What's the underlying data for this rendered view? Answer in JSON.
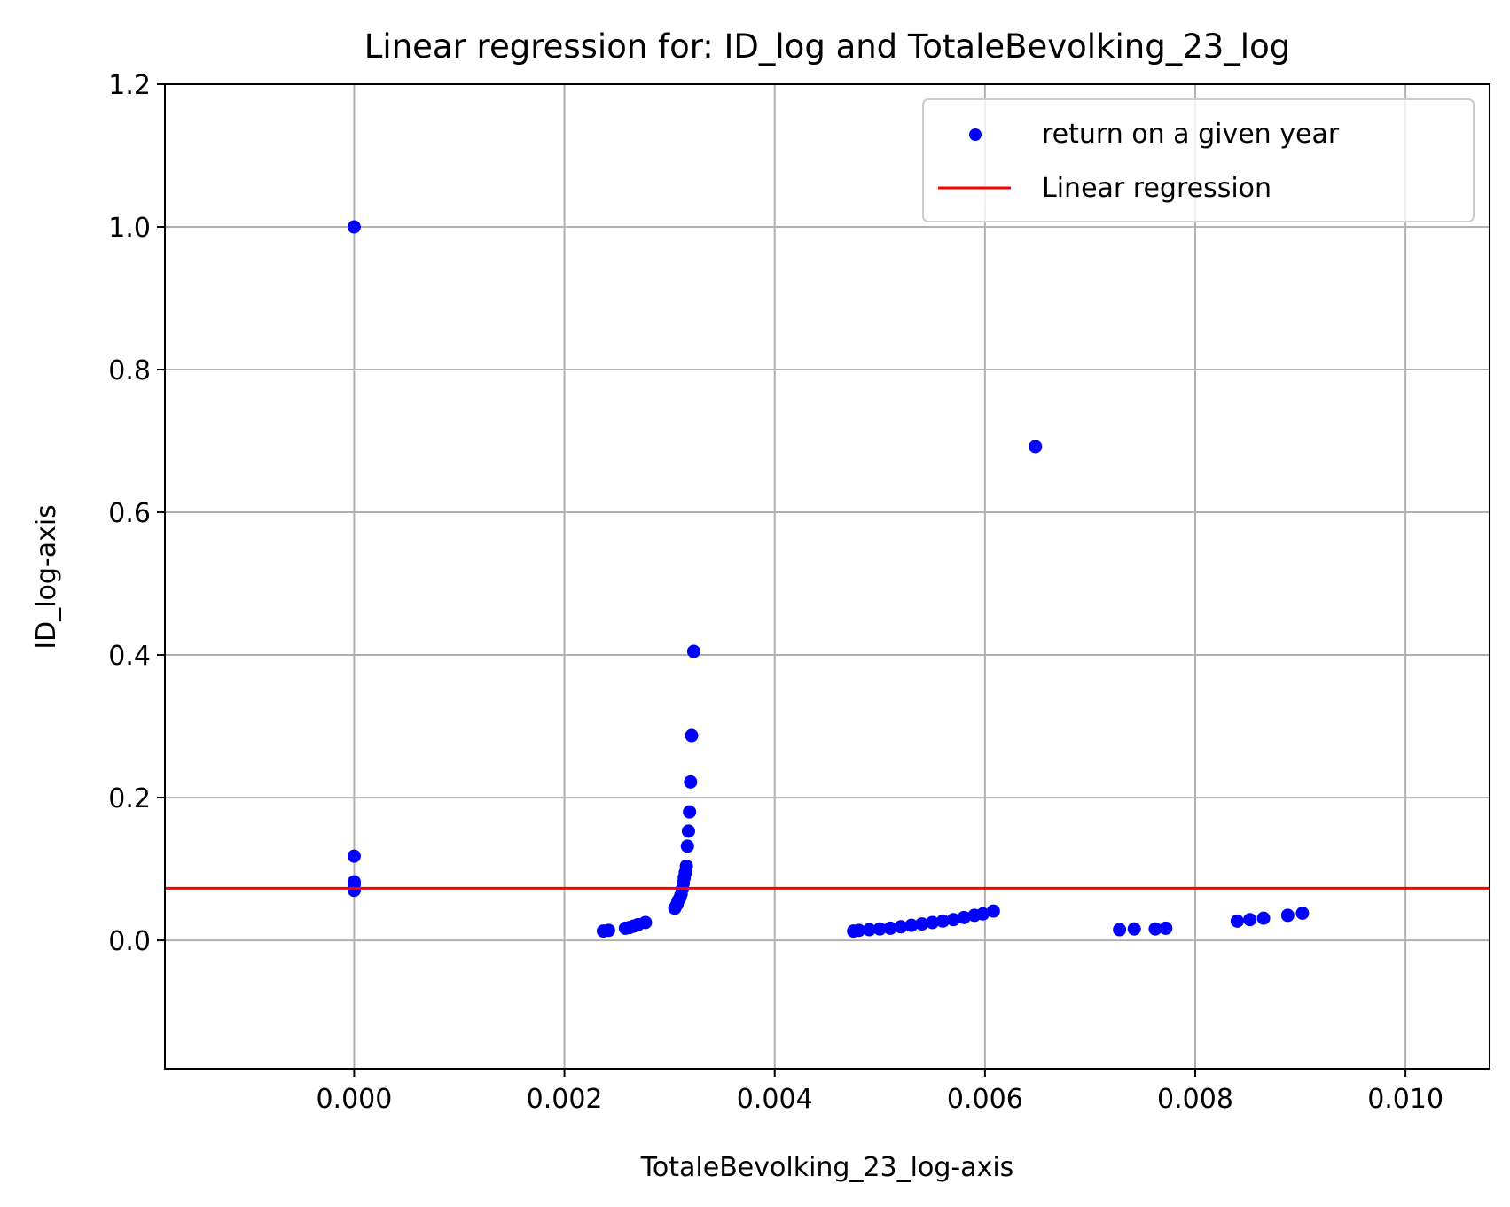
{
  "chart_data": {
    "type": "scatter",
    "title": "Linear regression for: ID_log and TotaleBevolking_23_log",
    "xlabel": "TotaleBevolking_23_log-axis",
    "ylabel": "ID_log-axis",
    "xlim": [
      -0.0018,
      0.0108
    ],
    "ylim": [
      -0.18,
      1.2
    ],
    "x_ticks": [
      0.0,
      0.002,
      0.004,
      0.006,
      0.008,
      0.01
    ],
    "x_tick_labels": [
      "0.000",
      "0.002",
      "0.004",
      "0.006",
      "0.008",
      "0.010"
    ],
    "y_ticks": [
      0.0,
      0.2,
      0.4,
      0.6,
      0.8,
      1.0,
      1.2
    ],
    "y_tick_labels": [
      "0.0",
      "0.2",
      "0.4",
      "0.6",
      "0.8",
      "1.0",
      "1.2"
    ],
    "grid": true,
    "legend_position": "top-right",
    "series": [
      {
        "name": "return on a given year",
        "kind": "scatter",
        "color": "#0000ff",
        "points": [
          [
            0.0,
            1.0
          ],
          [
            0.0,
            0.118
          ],
          [
            0.0,
            0.082
          ],
          [
            0.0,
            0.078
          ],
          [
            0.0,
            0.07
          ],
          [
            0.00237,
            0.013
          ],
          [
            0.00242,
            0.014
          ],
          [
            0.00258,
            0.017
          ],
          [
            0.00262,
            0.018
          ],
          [
            0.00266,
            0.02
          ],
          [
            0.0027,
            0.022
          ],
          [
            0.00277,
            0.025
          ],
          [
            0.00305,
            0.045
          ],
          [
            0.00307,
            0.05
          ],
          [
            0.00308,
            0.055
          ],
          [
            0.0031,
            0.06
          ],
          [
            0.00311,
            0.065
          ],
          [
            0.00312,
            0.072
          ],
          [
            0.00313,
            0.08
          ],
          [
            0.00314,
            0.088
          ],
          [
            0.00315,
            0.095
          ],
          [
            0.00316,
            0.104
          ],
          [
            0.00317,
            0.132
          ],
          [
            0.00318,
            0.153
          ],
          [
            0.00319,
            0.18
          ],
          [
            0.0032,
            0.222
          ],
          [
            0.00321,
            0.287
          ],
          [
            0.00323,
            0.405
          ],
          [
            0.00475,
            0.013
          ],
          [
            0.0048,
            0.014
          ],
          [
            0.0049,
            0.015
          ],
          [
            0.005,
            0.016
          ],
          [
            0.0051,
            0.017
          ],
          [
            0.0052,
            0.019
          ],
          [
            0.0053,
            0.021
          ],
          [
            0.0054,
            0.023
          ],
          [
            0.0055,
            0.025
          ],
          [
            0.0056,
            0.027
          ],
          [
            0.0057,
            0.029
          ],
          [
            0.0058,
            0.032
          ],
          [
            0.0059,
            0.035
          ],
          [
            0.00598,
            0.037
          ],
          [
            0.00608,
            0.041
          ],
          [
            0.00648,
            0.692
          ],
          [
            0.00728,
            0.015
          ],
          [
            0.00742,
            0.016
          ],
          [
            0.00762,
            0.016
          ],
          [
            0.00772,
            0.017
          ],
          [
            0.0084,
            0.027
          ],
          [
            0.00852,
            0.029
          ],
          [
            0.00865,
            0.031
          ],
          [
            0.00888,
            0.035
          ],
          [
            0.00902,
            0.038
          ]
        ]
      },
      {
        "name": "Linear regression",
        "kind": "line",
        "color": "#ff0000",
        "intercept": 0.073,
        "slope": 0.0
      }
    ]
  }
}
